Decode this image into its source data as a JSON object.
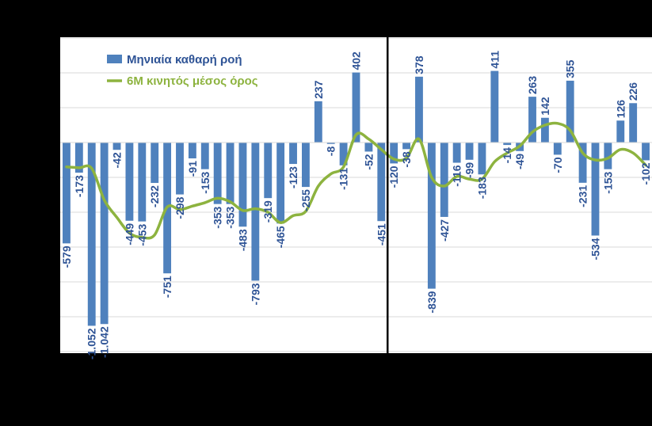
{
  "chart_data": {
    "type": "bar",
    "title": "",
    "xlabel": "",
    "ylabel": "",
    "ylim": [
      -1200,
      600
    ],
    "grid": true,
    "legend_position": "top-left",
    "divider_after_index": 25,
    "colors": {
      "bar": "#4f81bd",
      "line": "#8db33f",
      "plot_bg": "#ffffff",
      "grid": "#d9d9d9",
      "label": "#2f5496",
      "divider": "#000000"
    },
    "series": [
      {
        "name": "Μηνιαία καθαρή ροή",
        "type": "bar",
        "values": [
          -579,
          -173,
          -1052,
          -1042,
          -42,
          -449,
          -453,
          -232,
          -751,
          -298,
          -91,
          -153,
          -353,
          -353,
          -483,
          -793,
          -319,
          -465,
          -123,
          -255,
          237,
          -8,
          -131,
          402,
          -52,
          -451,
          -120,
          -38,
          378,
          -839,
          -427,
          -116,
          -99,
          -183,
          411,
          -14,
          -49,
          263,
          142,
          -70,
          355,
          -231,
          -534,
          -153,
          126,
          226,
          -102
        ],
        "data_labels": [
          "-579",
          "-173",
          "-1.052",
          "-1.042",
          "-42",
          "-449",
          "-453",
          "-232",
          "-751",
          "-298",
          "-91",
          "-153",
          "-353",
          "-353",
          "-483",
          "-793",
          "-319",
          "-465",
          "-123",
          "-255",
          "237",
          "-8",
          "-131",
          "402",
          "-52",
          "-451",
          "-120",
          "-38",
          "378",
          "-839",
          "-427",
          "-116",
          "-99",
          "-183",
          "411",
          "-14",
          "-49",
          "263",
          "142",
          "-70",
          "355",
          "-231",
          "-534",
          "-153",
          "126",
          "226",
          "-102"
        ]
      },
      {
        "name": "6M κινητός μέσος όρος",
        "type": "line",
        "values": [
          -140,
          -145,
          -148,
          -330,
          -430,
          -520,
          -545,
          -530,
          -370,
          -385,
          -365,
          -345,
          -320,
          -340,
          -390,
          -380,
          -400,
          -460,
          -420,
          -395,
          -250,
          -180,
          -140,
          45,
          20,
          -40,
          -95,
          -90,
          20,
          -200,
          -250,
          -195,
          -210,
          -210,
          -110,
          -60,
          -20,
          60,
          100,
          110,
          70,
          -60,
          -100,
          -90,
          -40,
          -60,
          -130
        ]
      }
    ]
  }
}
